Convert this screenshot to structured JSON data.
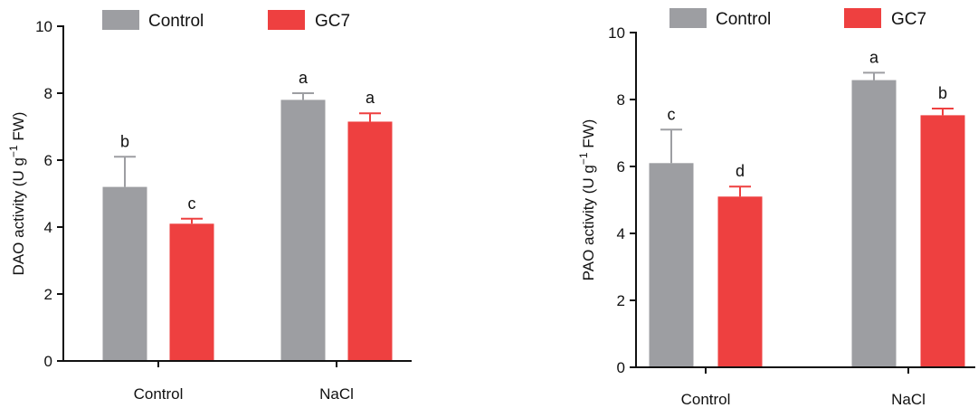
{
  "colors": {
    "control": "#9d9ea2",
    "gc7": "#ee4040",
    "axis": "#111111"
  },
  "chart_data": [
    {
      "type": "bar",
      "categories": [
        "Control",
        "NaCl"
      ],
      "ylabel_main": "DAO activity (U g",
      "ylabel_sup": "−1",
      "ylabel_tail": " FW)",
      "ylim": [
        0,
        10
      ],
      "yticks": [
        0,
        2,
        4,
        6,
        8,
        10
      ],
      "legend": [
        "Control",
        "GC7"
      ],
      "series": [
        {
          "name": "Control",
          "values": [
            5.2,
            7.8
          ],
          "errors": [
            0.9,
            0.2
          ],
          "labels": [
            "b",
            "a"
          ]
        },
        {
          "name": "GC7",
          "values": [
            4.1,
            7.15
          ],
          "errors": [
            0.15,
            0.25
          ],
          "labels": [
            "c",
            "a"
          ]
        }
      ]
    },
    {
      "type": "bar",
      "categories": [
        "Control",
        "NaCl"
      ],
      "ylabel_main": "PAO activity (U g",
      "ylabel_sup": "−1",
      "ylabel_tail": " FW)",
      "ylim": [
        0,
        10
      ],
      "yticks": [
        0,
        2,
        4,
        6,
        8,
        10
      ],
      "legend": [
        "Control",
        "GC7"
      ],
      "series": [
        {
          "name": "Control",
          "values": [
            6.1,
            8.58
          ],
          "errors": [
            1.0,
            0.22
          ],
          "labels": [
            "c",
            "a"
          ]
        },
        {
          "name": "GC7",
          "values": [
            5.1,
            7.53
          ],
          "errors": [
            0.3,
            0.2
          ],
          "labels": [
            "d",
            "b"
          ]
        }
      ]
    }
  ]
}
